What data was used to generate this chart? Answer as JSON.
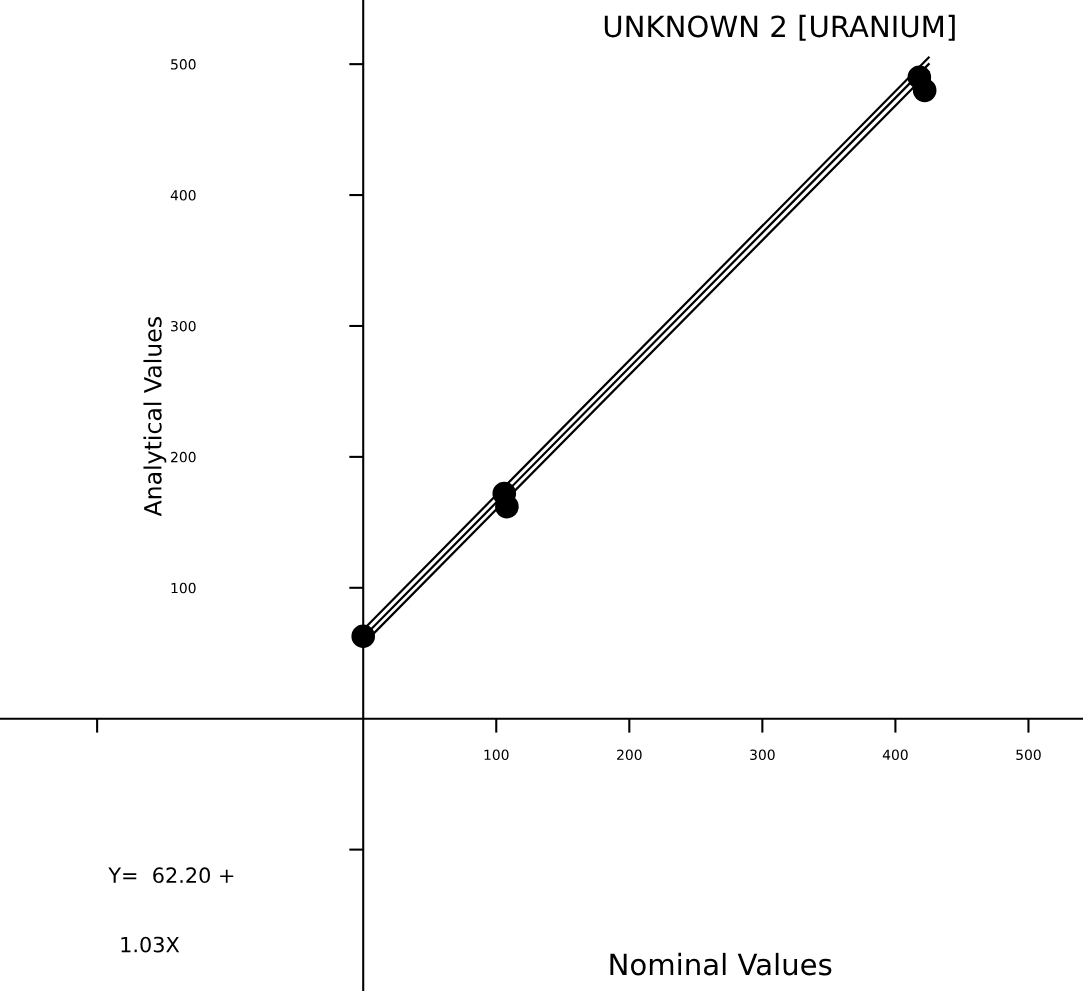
{
  "chart_data": {
    "type": "line",
    "title": "UNKNOWN 2 [URANIUM]",
    "xlabel": "Nominal Values",
    "ylabel": "Analytical Values",
    "annotations": [
      "Y=  62.20 +",
      "1.03X"
    ],
    "series": [
      {
        "color": "#000000",
        "marker": "none",
        "x": [
          0,
          425
        ],
        "values": [
          62.2,
          500
        ]
      },
      {
        "color": "#000000",
        "marker": "none",
        "x": [
          0,
          425
        ],
        "values": [
          68,
          505
        ]
      },
      {
        "color": "#000000",
        "marker": "none",
        "x": [
          0,
          425
        ],
        "values": [
          57,
          494
        ]
      },
      {
        "type": "scatter",
        "color": "#000000",
        "x": [
          0,
          106,
          108,
          418,
          422
        ],
        "values": [
          63,
          172,
          162,
          490,
          480
        ]
      }
    ],
    "xlim": [
      -273,
      541
    ],
    "ylim": [
      -208,
      549
    ],
    "xticks": [
      {
        "value": -200,
        "label": null
      },
      100,
      200,
      300,
      400,
      500
    ],
    "yticks": [
      {
        "value": -100,
        "label": null
      },
      100,
      200,
      300,
      400,
      500
    ],
    "grid": false,
    "marker": "circle",
    "line_style": "solid",
    "legend": false
  }
}
